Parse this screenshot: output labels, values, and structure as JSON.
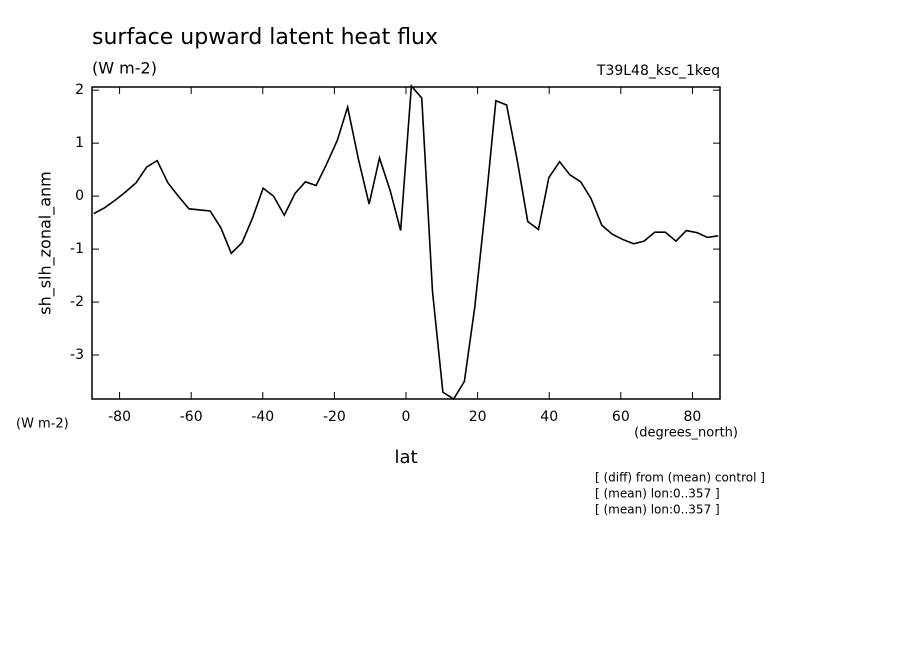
{
  "chart_data": {
    "type": "line",
    "title": "surface upward latent heat flux",
    "subtitle": "(W m-2)",
    "experiment": "T39L48_ksc_1keq",
    "y_label": "sh_slh_zonal_anm",
    "y_unit": "(W m-2)",
    "x_unit": "(degrees_north)",
    "x_label": "lat",
    "notes": [
      "[ (diff) from (mean) control ]",
      "[ (mean) lon:0..357 ]",
      "[ (mean) lon:0..357 ]"
    ],
    "x": [
      -87.2,
      -84.2,
      -81.3,
      -78.3,
      -75.4,
      -72.4,
      -69.5,
      -66.5,
      -63.6,
      -60.6,
      -57.6,
      -54.7,
      -51.7,
      -48.8,
      -45.8,
      -42.9,
      -39.9,
      -37.0,
      -34.0,
      -31.0,
      -28.1,
      -25.1,
      -22.2,
      -19.2,
      -16.3,
      -13.3,
      -10.3,
      -7.4,
      -4.4,
      -1.5,
      1.5,
      4.4,
      7.4,
      10.3,
      13.3,
      16.3,
      19.2,
      22.2,
      25.1,
      28.1,
      31.0,
      34.0,
      37.0,
      39.9,
      42.9,
      45.8,
      48.8,
      51.7,
      54.7,
      57.6,
      60.6,
      63.6,
      66.5,
      69.5,
      72.4,
      75.4,
      78.3,
      81.3,
      84.2,
      87.2
    ],
    "series": [
      {
        "name": "sh_slh_zonal_anm",
        "color": "#000000",
        "values": [
          -0.33,
          -0.22,
          -0.08,
          0.08,
          0.25,
          0.55,
          0.67,
          0.25,
          0.0,
          -0.24,
          -0.26,
          -0.28,
          -0.6,
          -1.08,
          -0.88,
          -0.42,
          0.15,
          0.0,
          -0.36,
          0.05,
          0.27,
          0.2,
          0.6,
          1.05,
          1.68,
          0.7,
          -0.15,
          0.72,
          0.1,
          -0.65,
          2.08,
          1.85,
          -1.8,
          -3.7,
          -3.83,
          -3.5,
          -2.1,
          -0.2,
          1.8,
          1.72,
          0.7,
          -0.48,
          -0.63,
          0.35,
          0.65,
          0.4,
          0.27,
          -0.05,
          -0.55,
          -0.72,
          -0.82,
          -0.9,
          -0.85,
          -0.68,
          -0.68,
          -0.85,
          -0.65,
          -0.69,
          -0.78,
          -0.75
        ]
      }
    ],
    "xlim": [
      -87.7,
      87.7
    ],
    "ylim": [
      -3.83,
      2.06
    ],
    "xticks": [
      -80,
      -60,
      -40,
      -20,
      0,
      20,
      40,
      60,
      80
    ],
    "yticks": [
      -3,
      -2,
      -1,
      0,
      1,
      2
    ]
  }
}
